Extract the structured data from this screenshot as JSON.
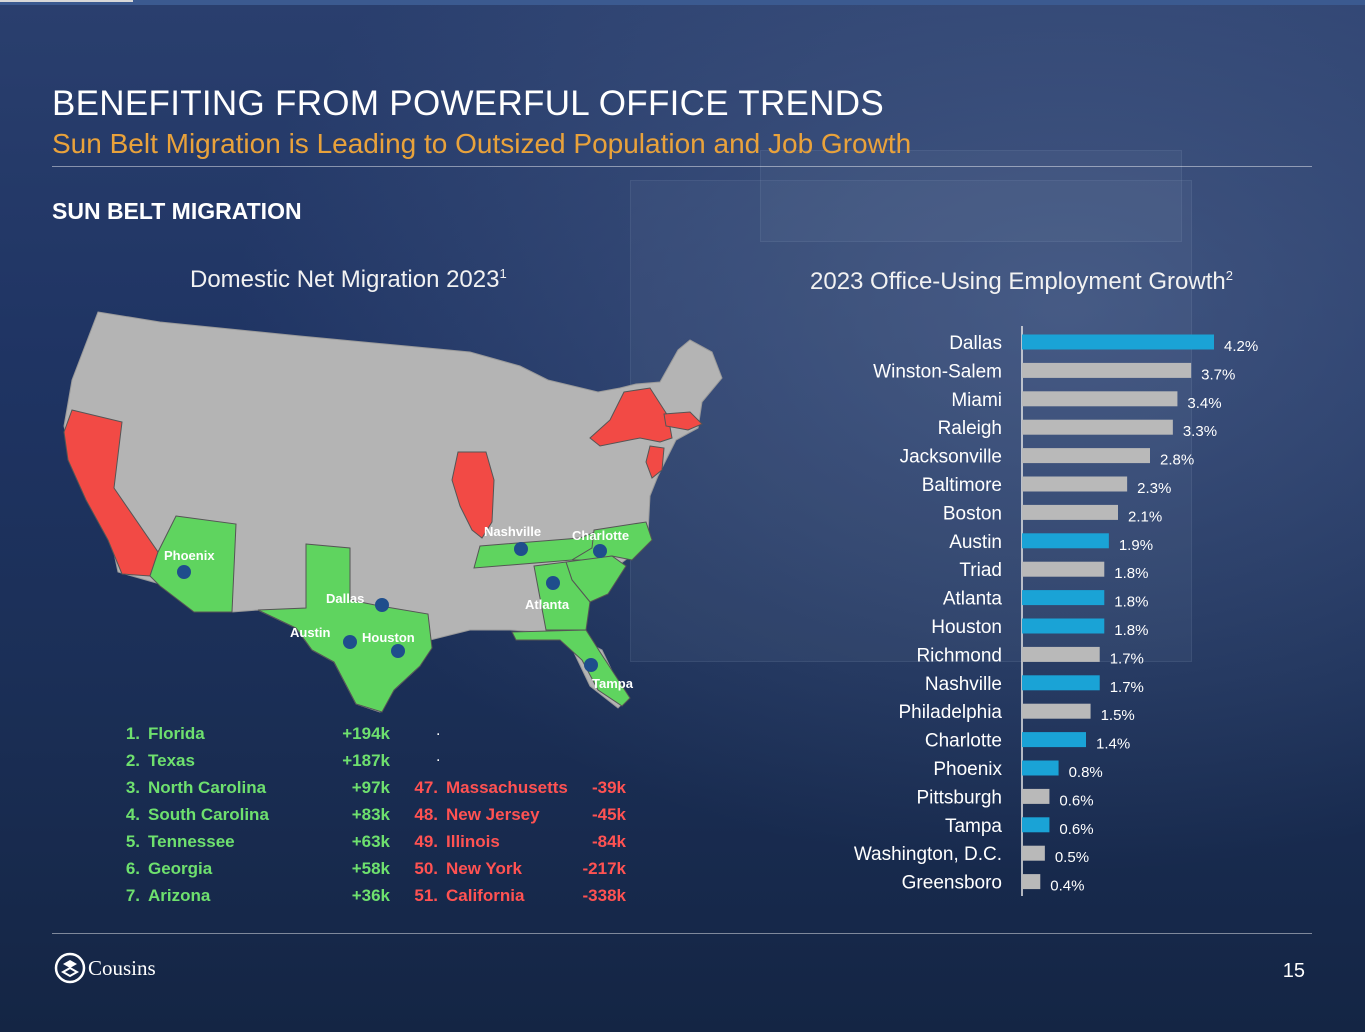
{
  "header": {
    "title": "BENEFITING FROM POWERFUL OFFICE TRENDS",
    "subtitle": "Sun Belt Migration is Leading to Outsized Population and Job Growth",
    "section": "SUN BELT MIGRATION"
  },
  "map_panel": {
    "title": "Domestic Net Migration 2023",
    "footnote": "1",
    "colors": {
      "gain": "#5fd45f",
      "loss": "#f24a45",
      "neutral": "#b4b4b4",
      "marker": "#1f4e8c"
    },
    "cities": [
      "Phoenix",
      "Dallas",
      "Austin",
      "Houston",
      "Nashville",
      "Charlotte",
      "Atlanta",
      "Tampa"
    ],
    "gainers": [
      {
        "rank": "1.",
        "state": "Florida",
        "value": "+194k"
      },
      {
        "rank": "2.",
        "state": "Texas",
        "value": "+187k"
      },
      {
        "rank": "3.",
        "state": "North Carolina",
        "value": "+97k"
      },
      {
        "rank": "4.",
        "state": "South Carolina",
        "value": "+83k"
      },
      {
        "rank": "5.",
        "state": "Tennessee",
        "value": "+63k"
      },
      {
        "rank": "6.",
        "state": "Georgia",
        "value": "+58k"
      },
      {
        "rank": "7.",
        "state": "Arizona",
        "value": "+36k"
      }
    ],
    "ellipsis": ".",
    "losers": [
      {
        "rank": "47.",
        "state": "Massachusetts",
        "value": "-39k"
      },
      {
        "rank": "48.",
        "state": "New Jersey",
        "value": "-45k"
      },
      {
        "rank": "49.",
        "state": "Illinois",
        "value": "-84k"
      },
      {
        "rank": "50.",
        "state": "New York",
        "value": "-217k"
      },
      {
        "rank": "51.",
        "state": "California",
        "value": "-338k"
      }
    ]
  },
  "chart_data": {
    "type": "bar",
    "orientation": "horizontal",
    "title": "2023 Office-Using Employment Growth",
    "footnote": "2",
    "categories": [
      "Dallas",
      "Winston-Salem",
      "Miami",
      "Raleigh",
      "Jacksonville",
      "Baltimore",
      "Boston",
      "Austin",
      "Triad",
      "Atlanta",
      "Houston",
      "Richmond",
      "Nashville",
      "Philadelphia",
      "Charlotte",
      "Phoenix",
      "Pittsburgh",
      "Tampa",
      "Washington, D.C.",
      "Greensboro"
    ],
    "values": [
      4.2,
      3.7,
      3.4,
      3.3,
      2.8,
      2.3,
      2.1,
      1.9,
      1.8,
      1.8,
      1.8,
      1.7,
      1.7,
      1.5,
      1.4,
      0.8,
      0.6,
      0.6,
      0.5,
      0.4
    ],
    "labels": [
      "4.2%",
      "3.7%",
      "3.4%",
      "3.3%",
      "2.8%",
      "2.3%",
      "2.1%",
      "1.9%",
      "1.8%",
      "1.8%",
      "1.8%",
      "1.7%",
      "1.7%",
      "1.5%",
      "1.4%",
      "0.8%",
      "0.6%",
      "0.6%",
      "0.5%",
      "0.4%"
    ],
    "highlighted": [
      "Dallas",
      "Austin",
      "Atlanta",
      "Houston",
      "Nashville",
      "Charlotte",
      "Phoenix",
      "Tampa"
    ],
    "colors": {
      "highlight": "#1aa3d6",
      "default": "#b9b9b9"
    },
    "xlim": [
      0,
      4.2
    ]
  },
  "footer": {
    "company": "Cousins",
    "page": "15"
  }
}
